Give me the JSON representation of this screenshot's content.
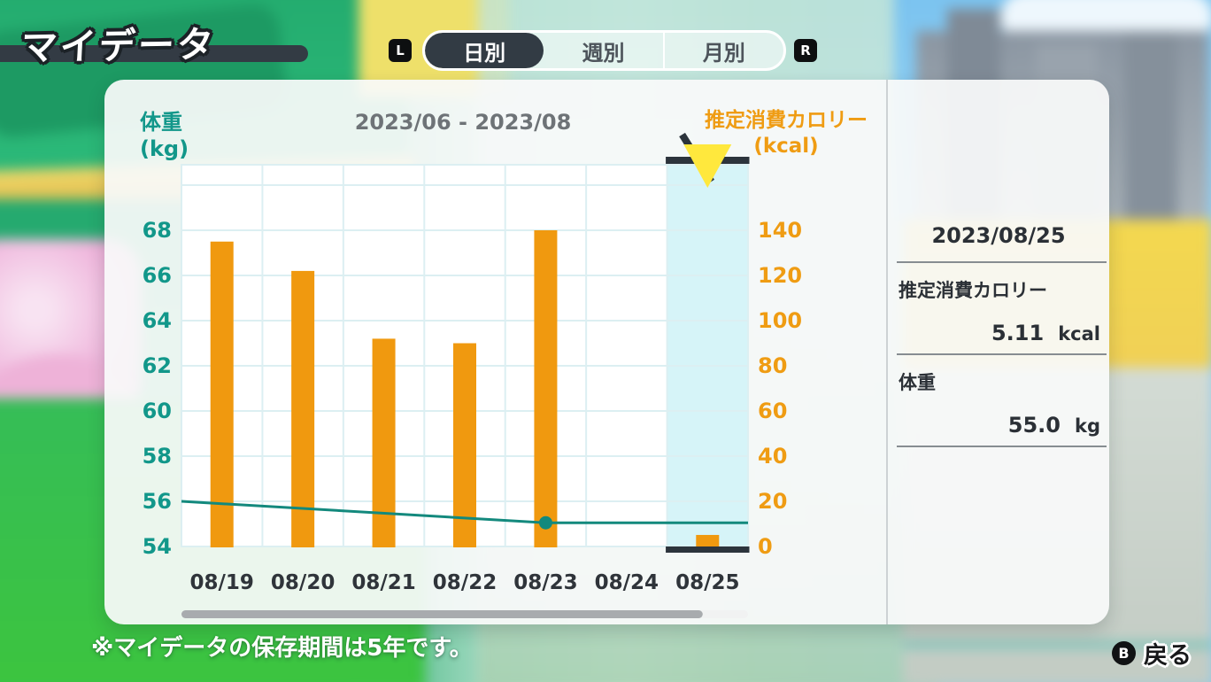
{
  "header": {
    "title": "マイデータ",
    "l_button": "L",
    "r_button": "R",
    "tabs": [
      {
        "label": "日別",
        "selected": true
      },
      {
        "label": "週別",
        "selected": false
      },
      {
        "label": "月別",
        "selected": false
      }
    ]
  },
  "chart": {
    "period_title": "2023/06 - 2023/08",
    "left_axis_title_line1": "体重",
    "left_axis_title_line2": "(kg)",
    "right_axis_title_line1": "推定消費カロリー",
    "right_axis_title_line2": "(kcal)"
  },
  "chart_data": {
    "type": "bar+line",
    "categories": [
      "08/19",
      "08/20",
      "08/21",
      "08/22",
      "08/23",
      "08/24",
      "08/25"
    ],
    "series": [
      {
        "name": "推定消費カロリー",
        "type": "bar",
        "axis": "right",
        "unit": "kcal",
        "values": [
          135,
          122,
          92,
          90,
          140,
          null,
          5.11
        ],
        "color": "#f0990f"
      },
      {
        "name": "体重",
        "type": "line",
        "axis": "left",
        "unit": "kg",
        "color": "#13897d",
        "points": [
          {
            "t": 0.0,
            "kg": 56.0
          },
          {
            "t": 0.6429,
            "kg": 55.05
          },
          {
            "t": 1.0,
            "kg": 55.05
          }
        ],
        "marker": {
          "t": 0.6429,
          "kg": 55.05
        }
      }
    ],
    "left_axis": {
      "ticks": [
        68,
        66,
        64,
        62,
        60,
        58,
        56,
        54
      ],
      "min": 54,
      "max": 70.9,
      "color": "#12978a"
    },
    "right_axis": {
      "ticks": [
        140,
        120,
        100,
        80,
        60,
        40,
        20,
        0
      ],
      "min": 0,
      "max": 169,
      "color": "#ef9c13"
    },
    "selected_category_index": 6,
    "grid": true,
    "legend_position": "none",
    "highlight_color": "#d6f4f8",
    "gridline_color": "#dceff2",
    "accent_dark": "#2c343c",
    "marker_triangle_color": "#ffe83d",
    "x_label_color": "#2f343a",
    "scrollbar": {
      "track_color": "#f1f2f2",
      "thumb_color": "#a8abae",
      "thumb_fraction": 0.92
    }
  },
  "detail_panel": {
    "date": "2023/08/25",
    "rows": [
      {
        "label": "推定消費カロリー",
        "value": "5.11",
        "unit": "kcal"
      },
      {
        "label": "体重",
        "value": "55.0",
        "unit": "kg"
      }
    ]
  },
  "footer": {
    "note": "※マイデータの保存期間は5年です。",
    "back_button": "B",
    "back_label": "戻る"
  }
}
